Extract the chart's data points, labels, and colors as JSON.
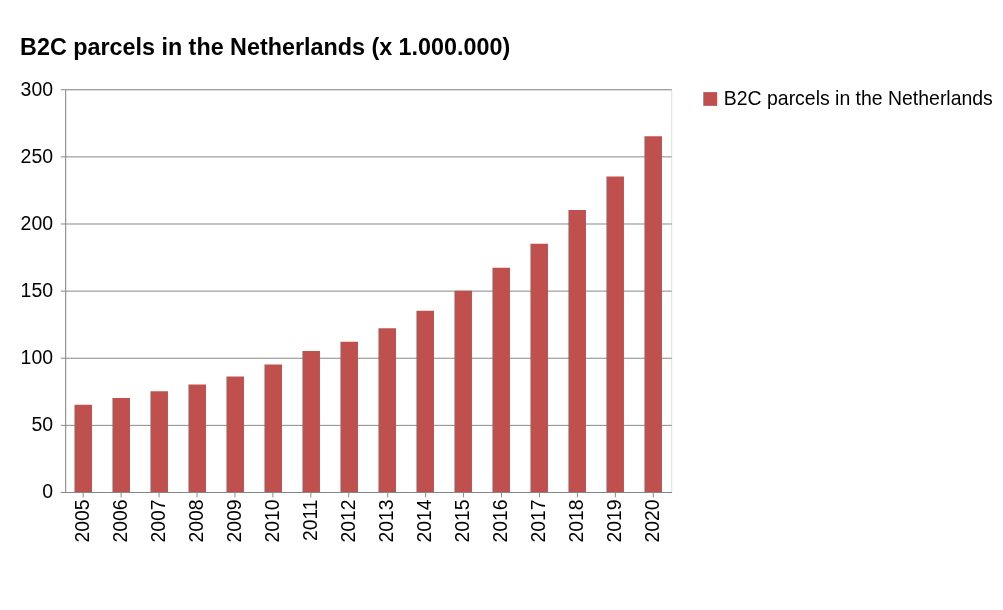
{
  "chart_data": {
    "type": "bar",
    "title": "B2C parcels in the Netherlands (x 1.000.000)",
    "categories": [
      "2005",
      "2006",
      "2007",
      "2008",
      "2009",
      "2010",
      "2011",
      "2012",
      "2013",
      "2014",
      "2015",
      "2016",
      "2017",
      "2018",
      "2019",
      "2020"
    ],
    "series": [
      {
        "name": "B2C parcels in the Netherlands",
        "color": "#c0504d",
        "values": [
          65,
          70,
          75,
          80,
          86,
          95,
          105,
          112,
          122,
          135,
          150,
          167,
          185,
          210,
          235,
          265
        ]
      }
    ],
    "ylim": [
      0,
      300
    ],
    "yticks": [
      0,
      50,
      100,
      150,
      200,
      250,
      300
    ],
    "grid": "y",
    "legend": "top right"
  }
}
